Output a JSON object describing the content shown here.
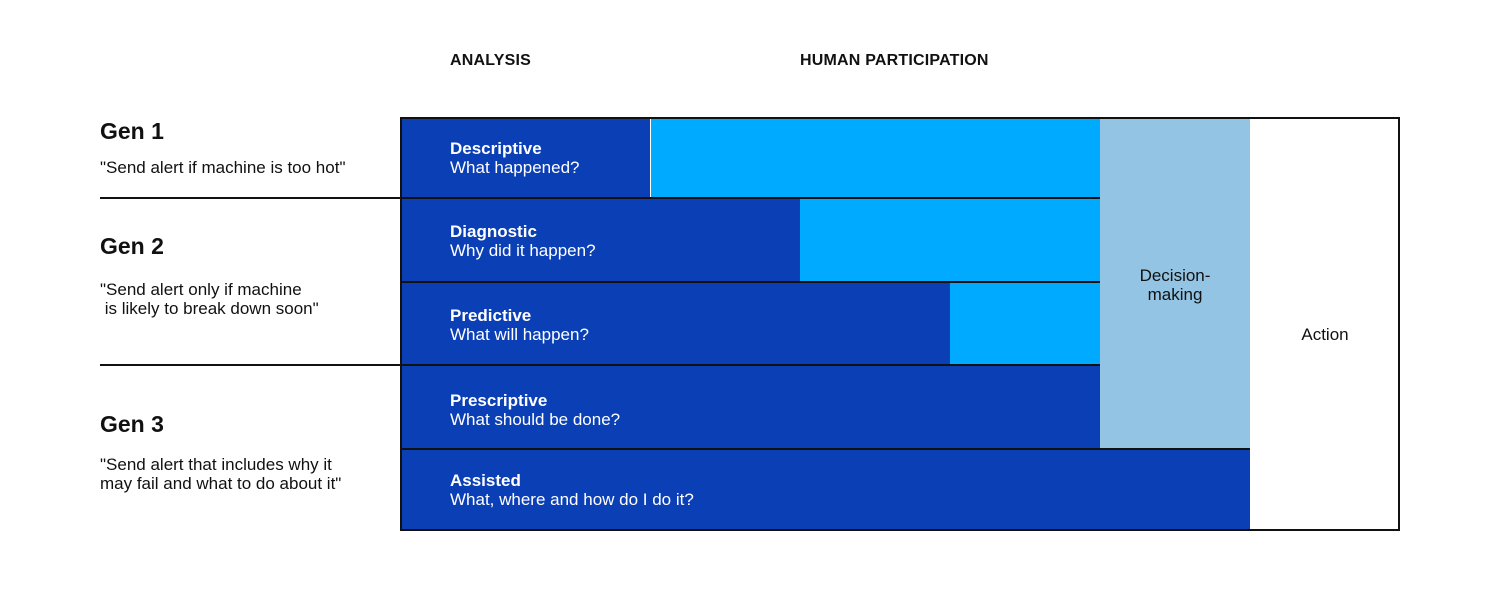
{
  "headers": {
    "analysis": "ANALYSIS",
    "human_participation": "HUMAN PARTICIPATION"
  },
  "generations": [
    {
      "title": "Gen 1",
      "description": "\"Send alert if machine is too hot\""
    },
    {
      "title": "Gen 2",
      "description": "\"Send alert only if machine\n is likely to break down soon\""
    },
    {
      "title": "Gen 3",
      "description": "\"Send alert that includes why it\nmay fail and what to do about it\""
    }
  ],
  "rows": [
    {
      "title": "Descriptive",
      "subtitle": "What happened?"
    },
    {
      "title": "Diagnostic",
      "subtitle": "Why did it happen?"
    },
    {
      "title": "Predictive",
      "subtitle": "What will happen?"
    },
    {
      "title": "Prescriptive",
      "subtitle": "What should be done?"
    },
    {
      "title": "Assisted",
      "subtitle": "What, where and how do I do it?"
    }
  ],
  "decision_label": "Decision-\nmaking",
  "action_label": "Action",
  "colors": {
    "analysis": "#0b3fb6",
    "human_participation": "#00aaff",
    "decision_making": "#93c4e3",
    "action": "#ffffff"
  }
}
